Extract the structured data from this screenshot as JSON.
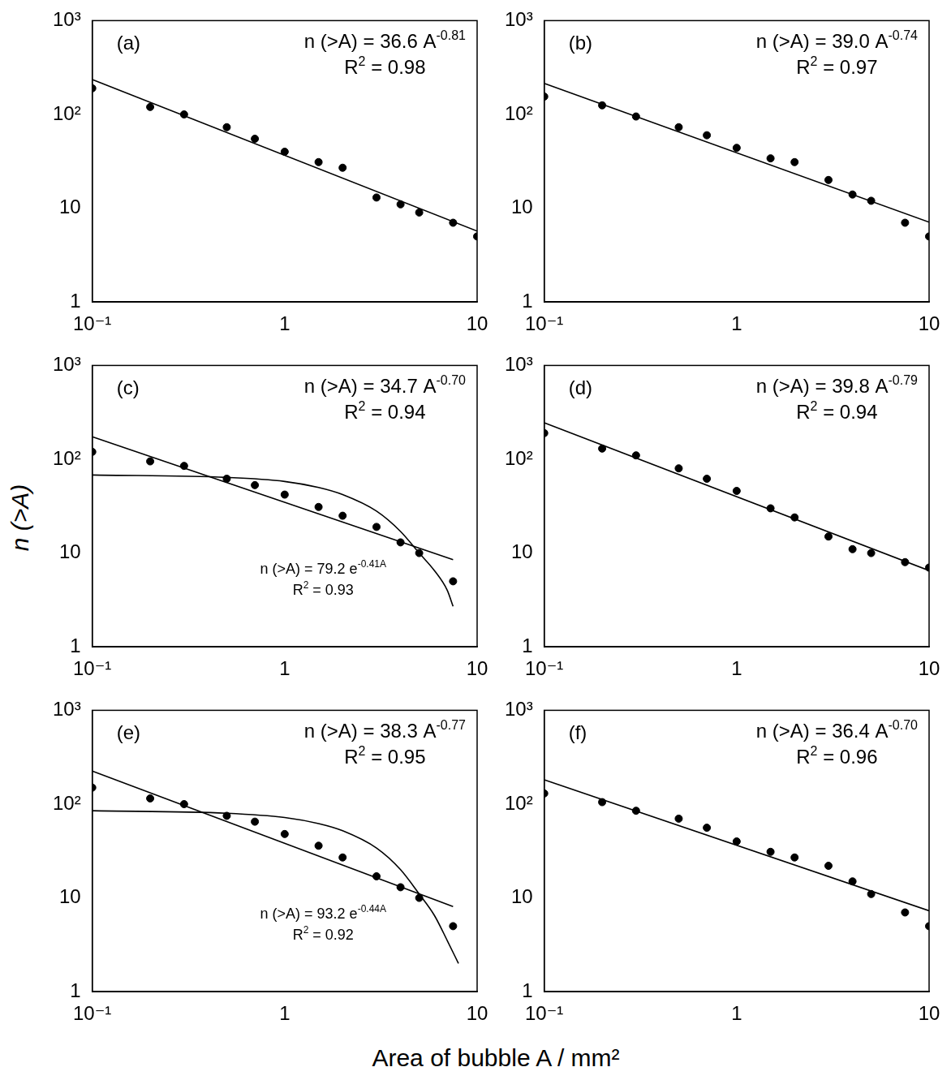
{
  "xlabel": "Area of bubble A / mm²",
  "ylabel": "n (>A)",
  "chart_data": [
    {
      "type": "scatter",
      "title": "(a)",
      "log": true,
      "grid": false,
      "xlim": [
        0.1,
        10
      ],
      "ylim": [
        1,
        1000
      ],
      "xticks": [
        {
          "value": 0.1,
          "label": "10⁻¹"
        },
        1,
        10
      ],
      "yticks": [
        1,
        10,
        {
          "value": 100,
          "label": "10²"
        },
        {
          "value": 1000,
          "label": "10³"
        }
      ],
      "series": [
        {
          "type": "scatter",
          "marker": "circle",
          "color": "#000000",
          "x": [
            0.1,
            0.2,
            0.3,
            0.5,
            0.7,
            1,
            1.5,
            2,
            3,
            4,
            5,
            7.5,
            10
          ],
          "values": [
            190,
            120,
            100,
            73,
            55,
            40,
            31,
            27,
            13,
            11,
            9,
            7,
            5
          ]
        },
        {
          "type": "line",
          "line_style": "solid",
          "color": "#000000",
          "x": [
            0.1,
            10
          ],
          "values": [
            236,
            5.7
          ],
          "equation": [
            {
              "text": "n (>A) = 36.6 A"
            },
            {
              "sup": "-0.81"
            }
          ],
          "r2": [
            {
              "text": "R"
            },
            {
              "sup": "2"
            },
            {
              "text": " = 0.98"
            }
          ]
        }
      ]
    },
    {
      "type": "scatter",
      "title": "(b)",
      "log": true,
      "grid": false,
      "xlim": [
        0.1,
        10
      ],
      "ylim": [
        1,
        1000
      ],
      "xticks": [
        {
          "value": 0.1,
          "label": "10⁻¹"
        },
        1,
        10
      ],
      "yticks": [
        1,
        10,
        {
          "value": 100,
          "label": "10²"
        },
        {
          "value": 1000,
          "label": "10³"
        }
      ],
      "series": [
        {
          "type": "scatter",
          "marker": "circle",
          "color": "#000000",
          "x": [
            0.1,
            0.2,
            0.3,
            0.5,
            0.7,
            1,
            1.5,
            2,
            3,
            4,
            5,
            7.5,
            10
          ],
          "values": [
            155,
            125,
            95,
            73,
            60,
            44,
            34,
            31,
            20,
            14,
            12,
            7,
            5
          ]
        },
        {
          "type": "line",
          "line_style": "solid",
          "color": "#000000",
          "x": [
            0.1,
            10
          ],
          "values": [
            214,
            7.1
          ],
          "equation": [
            {
              "text": "n (>A) = 39.0 A"
            },
            {
              "sup": "-0.74"
            }
          ],
          "r2": [
            {
              "text": "R"
            },
            {
              "sup": "2"
            },
            {
              "text": " = 0.97"
            }
          ]
        }
      ]
    },
    {
      "type": "scatter",
      "title": "(c)",
      "log": true,
      "grid": false,
      "xlim": [
        0.1,
        10
      ],
      "ylim": [
        1,
        1000
      ],
      "xticks": [
        {
          "value": 0.1,
          "label": "10⁻¹"
        },
        1,
        10
      ],
      "yticks": [
        1,
        10,
        {
          "value": 100,
          "label": "10²"
        },
        {
          "value": 1000,
          "label": "10³"
        }
      ],
      "series": [
        {
          "type": "scatter",
          "marker": "circle",
          "color": "#000000",
          "x": [
            0.1,
            0.2,
            0.3,
            0.5,
            0.7,
            1,
            1.5,
            2,
            3,
            4,
            5,
            7.5
          ],
          "values": [
            120,
            95,
            85,
            62,
            53,
            42,
            31,
            25,
            19,
            13,
            10,
            5
          ]
        },
        {
          "type": "line",
          "line_style": "solid",
          "color": "#000000",
          "x": [
            0.1,
            7.5
          ],
          "values": [
            174,
            8.5
          ],
          "equation": [
            {
              "text": "n (>A) = 34.7 A"
            },
            {
              "sup": "-0.70"
            }
          ],
          "r2": [
            {
              "text": "R"
            },
            {
              "sup": "2"
            },
            {
              "text": " = 0.94"
            }
          ]
        },
        {
          "type": "line",
          "line_style": "solid",
          "color": "#000000",
          "x": [
            0.1,
            0.5,
            1,
            1.5,
            2,
            3,
            4,
            5,
            6,
            7,
            7.5
          ],
          "values": [
            68,
            64,
            58,
            50,
            42,
            28,
            17,
            10,
            6.5,
            4,
            2.7
          ],
          "equation": [
            {
              "text": "n (>A) = 79.2 e"
            },
            {
              "sup": "-0.41A"
            }
          ],
          "r2": [
            {
              "text": "R"
            },
            {
              "sup": "2"
            },
            {
              "text": " = 0.93"
            }
          ]
        }
      ]
    },
    {
      "type": "scatter",
      "title": "(d)",
      "log": true,
      "grid": false,
      "xlim": [
        0.1,
        10
      ],
      "ylim": [
        1,
        1000
      ],
      "xticks": [
        {
          "value": 0.1,
          "label": "10⁻¹"
        },
        1,
        10
      ],
      "yticks": [
        1,
        10,
        {
          "value": 100,
          "label": "10²"
        },
        {
          "value": 1000,
          "label": "10³"
        }
      ],
      "series": [
        {
          "type": "scatter",
          "marker": "circle",
          "color": "#000000",
          "x": [
            0.1,
            0.2,
            0.3,
            0.5,
            0.7,
            1,
            1.5,
            2,
            3,
            4,
            5,
            7.5,
            10
          ],
          "values": [
            190,
            130,
            110,
            80,
            62,
            46,
            30,
            24,
            15,
            11,
            10,
            8,
            7
          ]
        },
        {
          "type": "line",
          "line_style": "solid",
          "color": "#000000",
          "x": [
            0.1,
            10
          ],
          "values": [
            245,
            6.5
          ],
          "equation": [
            {
              "text": "n (>A) = 39.8 A"
            },
            {
              "sup": "-0.79"
            }
          ],
          "r2": [
            {
              "text": "R"
            },
            {
              "sup": "2"
            },
            {
              "text": " = 0.94"
            }
          ]
        }
      ]
    },
    {
      "type": "scatter",
      "title": "(e)",
      "log": true,
      "grid": false,
      "xlim": [
        0.1,
        10
      ],
      "ylim": [
        1,
        1000
      ],
      "xticks": [
        {
          "value": 0.1,
          "label": "10⁻¹"
        },
        1,
        10
      ],
      "yticks": [
        1,
        10,
        {
          "value": 100,
          "label": "10²"
        },
        {
          "value": 1000,
          "label": "10³"
        }
      ],
      "series": [
        {
          "type": "scatter",
          "marker": "circle",
          "color": "#000000",
          "x": [
            0.1,
            0.2,
            0.3,
            0.5,
            0.7,
            1,
            1.5,
            2,
            3,
            4,
            5,
            7.5
          ],
          "values": [
            150,
            115,
            100,
            75,
            65,
            48,
            36,
            27,
            17,
            13,
            10,
            5
          ]
        },
        {
          "type": "line",
          "line_style": "solid",
          "color": "#000000",
          "x": [
            0.1,
            7.5
          ],
          "values": [
            225,
            8.1
          ],
          "equation": [
            {
              "text": "n (>A) = 38.3 A"
            },
            {
              "sup": "-0.77"
            }
          ],
          "r2": [
            {
              "text": "R"
            },
            {
              "sup": "2"
            },
            {
              "text": " = 0.95"
            }
          ]
        },
        {
          "type": "line",
          "line_style": "solid",
          "color": "#000000",
          "x": [
            0.1,
            0.5,
            1,
            1.5,
            2,
            3,
            4,
            5,
            6,
            7,
            8
          ],
          "values": [
            85,
            80,
            72,
            62,
            52,
            34,
            20,
            11,
            6.5,
            3.5,
            2
          ],
          "equation": [
            {
              "text": "n (>A) = 93.2 e"
            },
            {
              "sup": "-0.44A"
            }
          ],
          "r2": [
            {
              "text": "R"
            },
            {
              "sup": "2"
            },
            {
              "text": " = 0.92"
            }
          ]
        }
      ]
    },
    {
      "type": "scatter",
      "title": "(f)",
      "log": true,
      "grid": false,
      "xlim": [
        0.1,
        10
      ],
      "ylim": [
        1,
        1000
      ],
      "xticks": [
        {
          "value": 0.1,
          "label": "10⁻¹"
        },
        1,
        10
      ],
      "yticks": [
        1,
        10,
        {
          "value": 100,
          "label": "10²"
        },
        {
          "value": 1000,
          "label": "10³"
        }
      ],
      "series": [
        {
          "type": "scatter",
          "marker": "circle",
          "color": "#000000",
          "x": [
            0.1,
            0.2,
            0.3,
            0.5,
            0.7,
            1,
            1.5,
            2,
            3,
            4,
            5,
            7.5,
            10
          ],
          "values": [
            130,
            105,
            85,
            70,
            56,
            40,
            31,
            27,
            22,
            15,
            11,
            7,
            5
          ]
        },
        {
          "type": "line",
          "line_style": "solid",
          "color": "#000000",
          "x": [
            0.1,
            10
          ],
          "values": [
            182,
            7.3
          ],
          "equation": [
            {
              "text": "n (>A) = 36.4 A"
            },
            {
              "sup": "-0.70"
            }
          ],
          "r2": [
            {
              "text": "R"
            },
            {
              "sup": "2"
            },
            {
              "text": " = 0.96"
            }
          ]
        }
      ]
    }
  ]
}
